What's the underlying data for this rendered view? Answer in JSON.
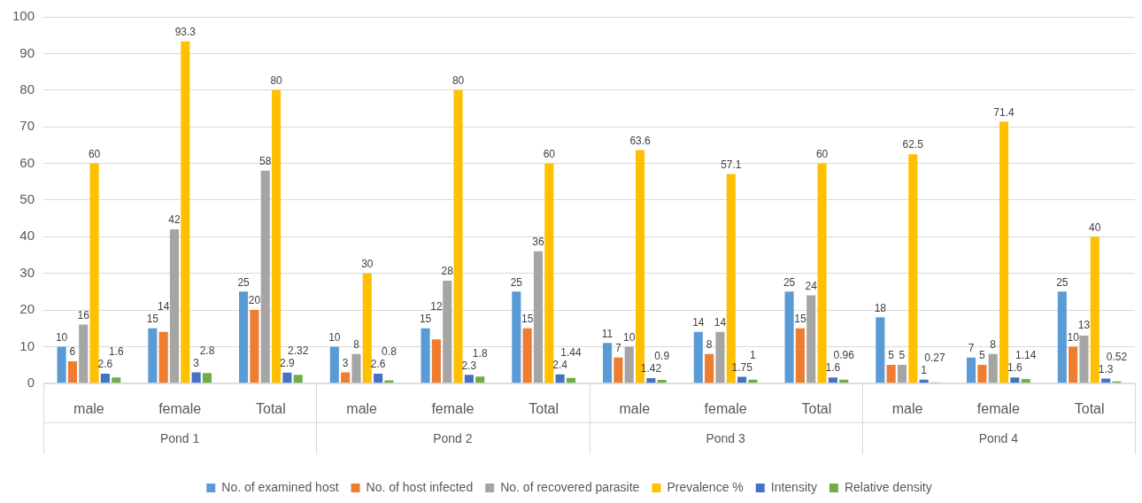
{
  "chart_data": {
    "type": "bar",
    "categories": [
      "male",
      "female",
      "Total",
      "male",
      "female",
      "Total",
      "male",
      "female",
      "Total",
      "male",
      "female",
      "Total"
    ],
    "series": [
      {
        "name": "No. of examined host",
        "color": "#5b9bd5",
        "values": [
          10,
          15,
          25,
          10,
          15,
          25,
          11,
          14,
          25,
          18,
          7,
          25
        ]
      },
      {
        "name": "No. of host infected",
        "color": "#ed7d31",
        "values": [
          6,
          14,
          20,
          3,
          12,
          15,
          7,
          8,
          15,
          5,
          5,
          10
        ]
      },
      {
        "name": "No. of recovered parasite",
        "color": "#a5a5a5",
        "values": [
          16,
          42,
          58,
          8,
          28,
          36,
          10,
          14,
          24,
          5,
          8,
          13
        ]
      },
      {
        "name": "Prevalence %",
        "color": "#ffc000",
        "values": [
          60,
          93.3,
          80,
          30,
          80,
          60,
          63.6,
          57.1,
          60,
          62.5,
          71.4,
          40
        ]
      },
      {
        "name": "Intensity",
        "color": "#4472c4",
        "values": [
          2.6,
          3,
          2.9,
          2.6,
          2.3,
          2.4,
          1.42,
          1.75,
          1.6,
          1,
          1.6,
          1.3
        ]
      },
      {
        "name": "Relative density",
        "color": "#70ad47",
        "values": [
          1.6,
          2.8,
          2.32,
          0.8,
          1.8,
          1.44,
          0.9,
          1,
          0.96,
          0.27,
          1.14,
          0.52
        ]
      }
    ],
    "annotations": [
      "Pond 1",
      "Pond 2",
      "Pond 3",
      "Pond 4"
    ],
    "ylim": [
      0,
      100
    ],
    "yticks": [
      0,
      10,
      20,
      30,
      40,
      50,
      60,
      70,
      80,
      90,
      100
    ],
    "grid": "y",
    "legend": "bottom",
    "data_labels": true
  }
}
